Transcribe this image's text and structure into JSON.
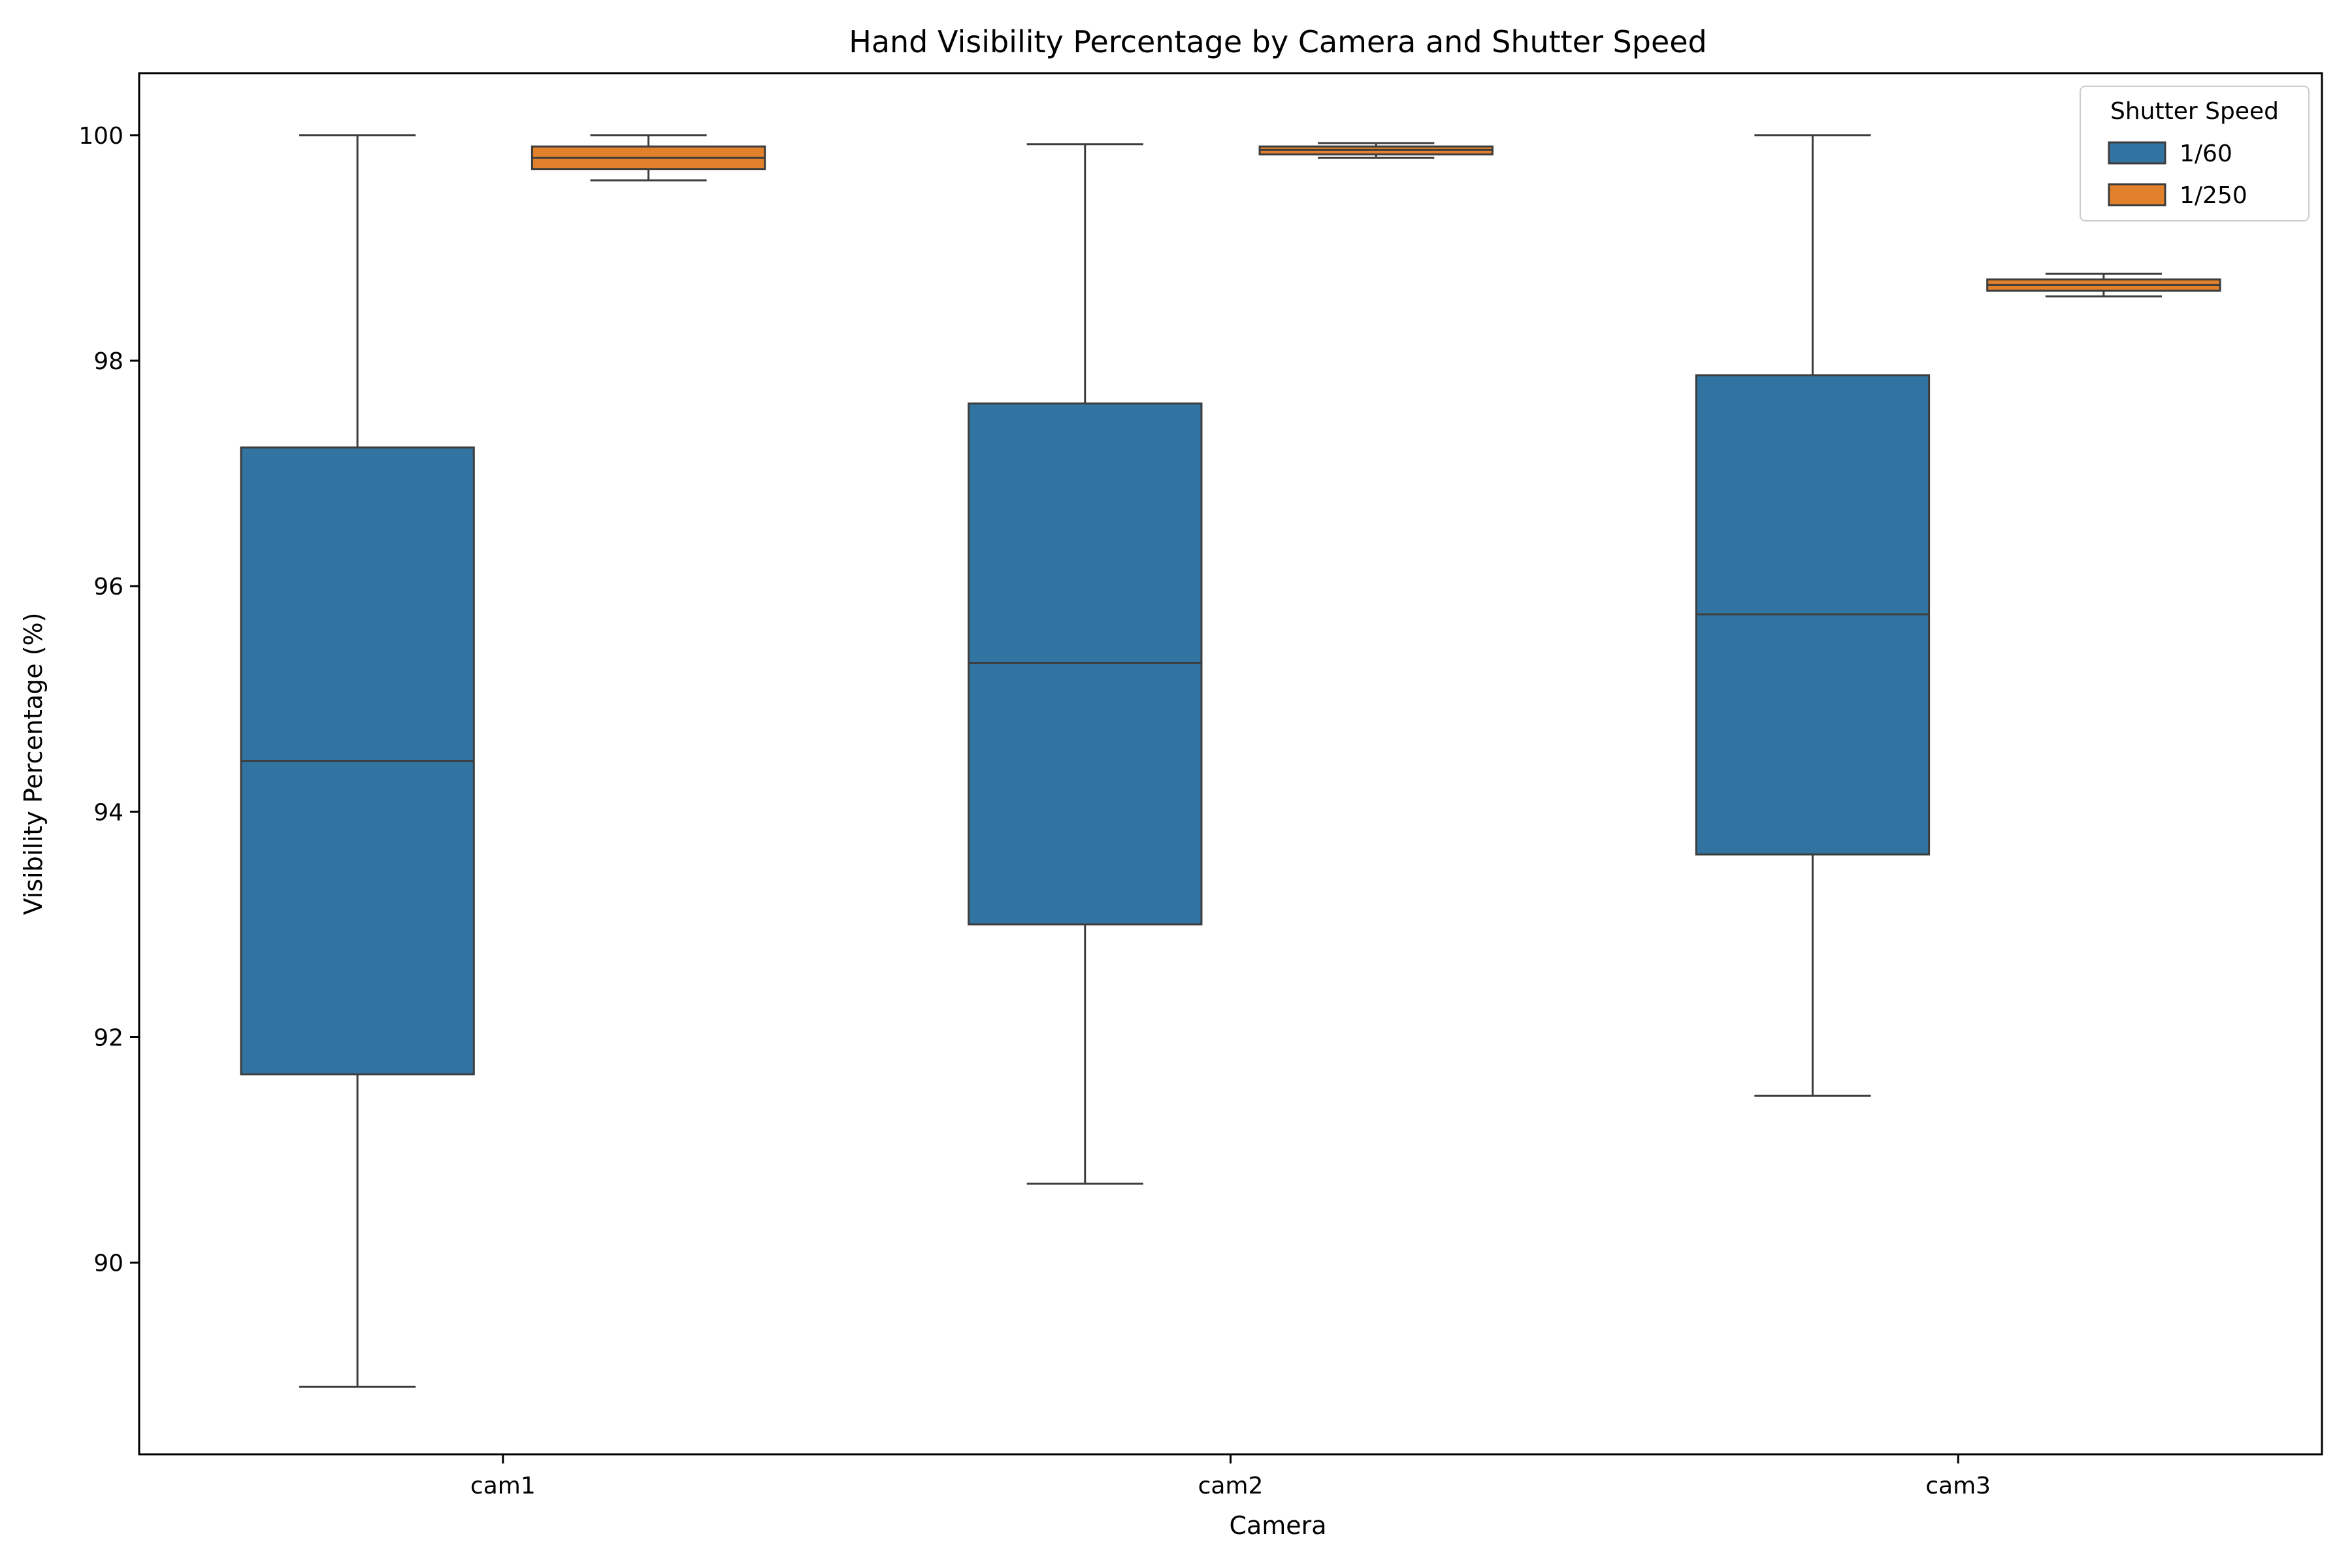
{
  "chart_data": {
    "type": "box",
    "title": "Hand Visibility Percentage by Camera and Shutter Speed",
    "xlabel": "Camera",
    "ylabel": "Visibility Percentage (%)",
    "categories": [
      "cam1",
      "cam2",
      "cam3"
    ],
    "ylim": [
      88.3,
      100.55
    ],
    "yticks": [
      90,
      92,
      94,
      96,
      98,
      100
    ],
    "grid": false,
    "legend": {
      "title": "Shutter Speed",
      "placement": "top-right"
    },
    "series": [
      {
        "name": "1/60",
        "color": "#3274a1",
        "boxes": [
          {
            "category": "cam1",
            "whisker_low": 88.9,
            "q1": 91.67,
            "median": 94.45,
            "q3": 97.23,
            "whisker_high": 100.0
          },
          {
            "category": "cam2",
            "whisker_low": 90.7,
            "q1": 93.0,
            "median": 95.32,
            "q3": 97.62,
            "whisker_high": 99.92
          },
          {
            "category": "cam3",
            "whisker_low": 91.48,
            "q1": 93.62,
            "median": 95.75,
            "q3": 97.87,
            "whisker_high": 100.0
          }
        ]
      },
      {
        "name": "1/250",
        "color": "#e1812c",
        "boxes": [
          {
            "category": "cam1",
            "whisker_low": 99.6,
            "q1": 99.7,
            "median": 99.8,
            "q3": 99.9,
            "whisker_high": 100.0
          },
          {
            "category": "cam2",
            "whisker_low": 99.8,
            "q1": 99.83,
            "median": 99.87,
            "q3": 99.9,
            "whisker_high": 99.93
          },
          {
            "category": "cam3",
            "whisker_low": 98.57,
            "q1": 98.62,
            "median": 98.67,
            "q3": 98.72,
            "whisker_high": 98.77
          }
        ]
      }
    ]
  }
}
